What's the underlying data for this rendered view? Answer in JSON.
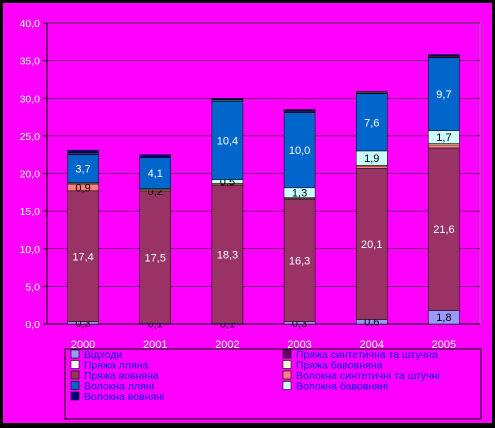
{
  "chart_data": {
    "type": "bar",
    "stacked": true,
    "categories": [
      "2000",
      "2001",
      "2002",
      "2003",
      "2004",
      "2005"
    ],
    "ylim": [
      0,
      40
    ],
    "yticks": [
      "0,0",
      "5,0",
      "10,0",
      "15,0",
      "20,0",
      "25,0",
      "30,0",
      "35,0",
      "40,0"
    ],
    "grid": true,
    "legend_position": "bottom",
    "series": [
      {
        "name": "Відходи",
        "color": "#9999ff",
        "values": [
          0.3,
          0.1,
          0.1,
          0.3,
          0.6,
          1.8
        ],
        "labels": [
          "0,3",
          "0,1",
          "0,1",
          "0,3",
          "0,6",
          "1,8"
        ]
      },
      {
        "name": "Пряжа вовняна",
        "color": "#993366",
        "values": [
          17.4,
          17.5,
          18.3,
          16.3,
          20.1,
          21.6
        ],
        "labels": [
          "17,4",
          "17,5",
          "18,3",
          "16,3",
          "20,1",
          "21,6"
        ]
      },
      {
        "name": "Волокна синтетичні та штучні",
        "color": "#ff8080",
        "values": [
          0.9,
          0.2,
          0.2,
          0.1,
          0.3,
          0.4
        ],
        "labels": [
          "0,9",
          "0,2",
          "",
          "",
          "",
          ""
        ]
      },
      {
        "name": "Пряжа бавовняна",
        "color": "#ffffcc",
        "values": [
          0.1,
          0.1,
          0.1,
          0.1,
          0.1,
          0.2
        ],
        "labels": [
          "",
          "",
          "",
          "",
          "",
          ""
        ]
      },
      {
        "name": "Волокна бавовняні",
        "color": "#ccffff",
        "values": [
          0.1,
          0.1,
          0.5,
          1.3,
          1.9,
          1.7
        ],
        "labels": [
          "",
          "",
          "0,5",
          "1,3",
          "1,9",
          "1,7"
        ]
      },
      {
        "name": "Волокна лляні",
        "color": "#0066cc",
        "values": [
          3.7,
          4.1,
          10.4,
          10.0,
          7.6,
          9.7
        ],
        "labels": [
          "3,7",
          "4,1",
          "10,4",
          "10,0",
          "7,6",
          "9,7"
        ]
      },
      {
        "name": "Пряжа синтетична та штучна",
        "color": "#660066",
        "values": [
          0.1,
          0.0,
          0.1,
          0.1,
          0.1,
          0.1
        ],
        "labels": [
          "",
          "",
          "",
          "",
          "",
          ""
        ]
      },
      {
        "name": "Пряжа лляна",
        "color": "#ffffff",
        "values": [
          0.1,
          0.0,
          0.1,
          0.1,
          0.1,
          0.1
        ],
        "labels": [
          "",
          "",
          "",
          "",
          "",
          ""
        ]
      },
      {
        "name": "Волокна вовняні",
        "color": "#000080",
        "values": [
          0.4,
          0.4,
          0.2,
          0.2,
          0.1,
          0.2
        ],
        "labels": [
          "",
          "",
          "",
          "",
          "",
          ""
        ]
      }
    ],
    "legend_order": [
      "Відходи",
      "Пряжа синтетична та штучна",
      "Пряжа лляна",
      "Пряжа бавовняна",
      "Пряжа вовняна",
      "Волокна синтетичні та штучні",
      "Волокна лляні",
      "Волокна бавовняні",
      "Волокна вовняні"
    ]
  }
}
